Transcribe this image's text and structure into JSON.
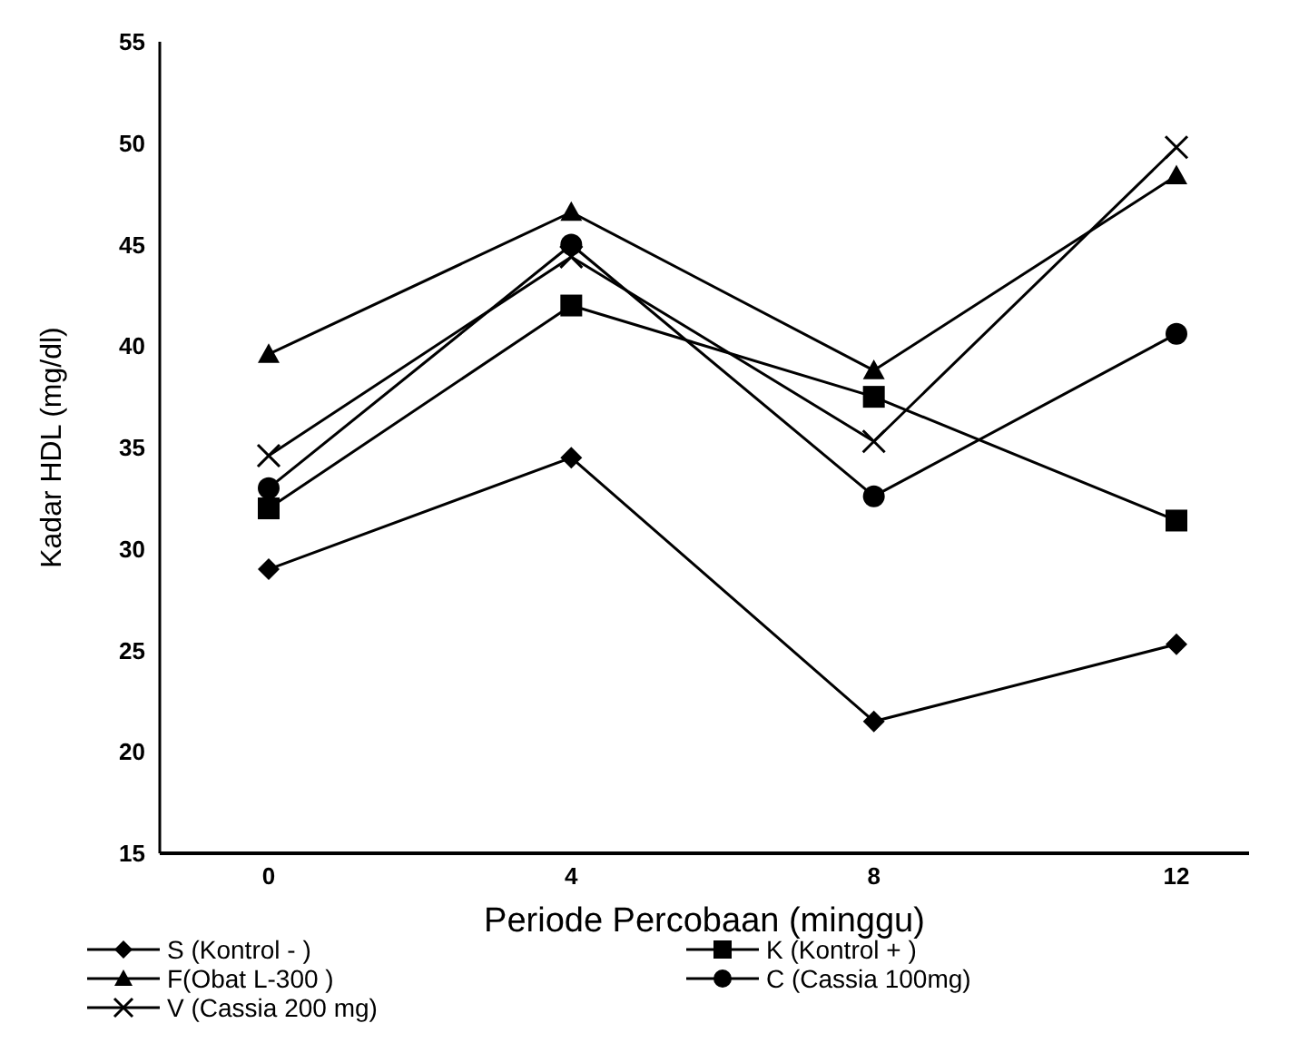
{
  "chart_data": {
    "type": "line",
    "xlabel": "Periode Percobaan (minggu)",
    "ylabel": "Kadar HDL (mg/dl)",
    "categories": [
      "0",
      "4",
      "8",
      "12"
    ],
    "ylim": [
      15,
      55
    ],
    "yticks": [
      15,
      20,
      25,
      30,
      35,
      40,
      45,
      50,
      55
    ],
    "grid": false,
    "legend": "bottom",
    "series": [
      {
        "name": "S (Kontrol - )",
        "color": "#000000",
        "marker": "diamond",
        "values": [
          29,
          34.5,
          21.5,
          25.3
        ]
      },
      {
        "name": "K (Kontrol + )",
        "color": "#000000",
        "marker": "square",
        "values": [
          32,
          42,
          37.5,
          31.4
        ]
      },
      {
        "name": "F(Obat L-300 )",
        "color": "#000000",
        "marker": "triangle",
        "values": [
          39.6,
          46.6,
          38.8,
          48.4
        ]
      },
      {
        "name": "C (Cassia 100mg)",
        "color": "#000000",
        "marker": "circle",
        "values": [
          33,
          45,
          32.6,
          40.6
        ]
      },
      {
        "name": "V (Cassia 200 mg)",
        "color": "#000000",
        "marker": "cross",
        "values": [
          34.6,
          44.4,
          35.3,
          49.8
        ]
      }
    ]
  }
}
